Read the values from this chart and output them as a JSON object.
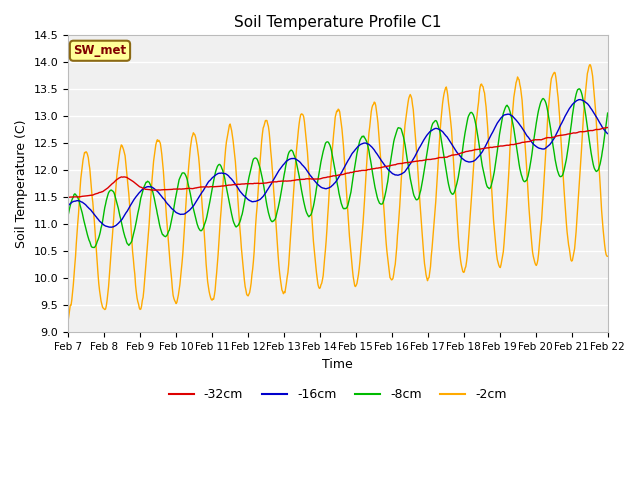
{
  "title": "Soil Temperature Profile C1",
  "xlabel": "Time",
  "ylabel": "Soil Temperature (C)",
  "ylim": [
    9.0,
    14.5
  ],
  "figsize": [
    6.4,
    4.8
  ],
  "dpi": 100,
  "background_color": "#ffffff",
  "plot_bg_color": "#f0f0f0",
  "grid_color": "#ffffff",
  "annotation_text": "SW_met",
  "annotation_bg": "#ffff99",
  "annotation_border": "#8B6914",
  "annotation_text_color": "#800000",
  "xtick_labels": [
    "Feb 7",
    "Feb 8",
    "Feb 9",
    "Feb 10",
    "Feb 11",
    "Feb 12",
    "Feb 13",
    "Feb 14",
    "Feb 15",
    "Feb 16",
    "Feb 17",
    "Feb 18",
    "Feb 19",
    "Feb 20",
    "Feb 21",
    "Feb 22"
  ],
  "series_colors": {
    "32cm": "#dd0000",
    "16cm": "#0000cc",
    "8cm": "#00bb00",
    "2cm": "#ffaa00"
  },
  "legend_labels": [
    "-32cm",
    "-16cm",
    "-8cm",
    "-2cm"
  ],
  "n_days": 15,
  "pts_per_day": 48
}
